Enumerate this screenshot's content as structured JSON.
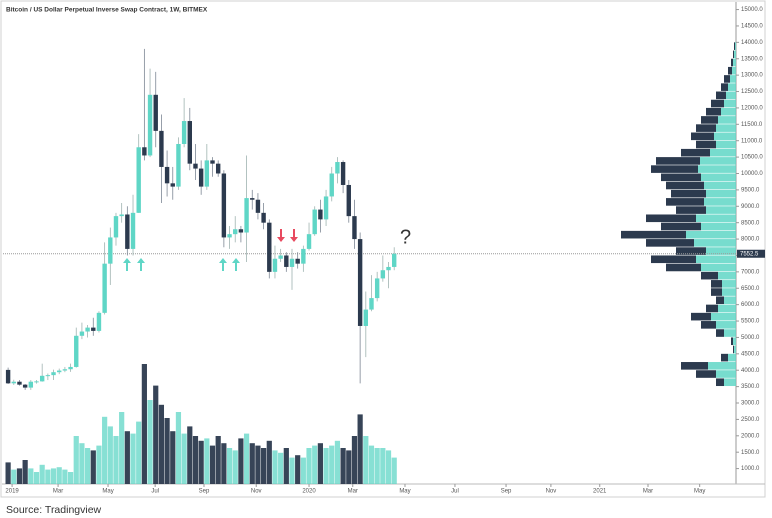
{
  "chart_data": {
    "type": "candlestick",
    "title": "Bitcoin / US Dollar Perpetual Inverse Swap Contract, 1W, BITMEX",
    "caption": "Source: Tradingview",
    "annotation": "?",
    "up_color": "#5fd6c6",
    "down_color": "#2c3a4e",
    "open": [
      4010,
      3600,
      3650,
      3560,
      3470,
      3650,
      3660,
      3830,
      3850,
      3940,
      3990,
      4030,
      4100,
      5050,
      5180,
      5300,
      5200,
      5750,
      7250,
      8050,
      8700,
      8750,
      7700,
      8800,
      10800,
      10550,
      12400,
      11300,
      10200,
      9700,
      9600,
      10900,
      11600,
      10300,
      10150,
      9600,
      10400,
      10300,
      10000,
      8050,
      8150,
      8300,
      8200,
      9250,
      9200,
      8800,
      8500,
      7000,
      7400,
      7500,
      7150,
      7400,
      7250,
      7700,
      8150,
      8900,
      8600,
      9300,
      10000,
      10350,
      9650,
      8700,
      8000,
      5350,
      5850,
      6200,
      6800,
      7050,
      7150
    ],
    "high": [
      4080,
      3710,
      3700,
      3580,
      3700,
      3700,
      4200,
      3900,
      4020,
      4050,
      4100,
      4200,
      5300,
      5450,
      5380,
      5600,
      5800,
      7900,
      8350,
      8800,
      9100,
      9000,
      9350,
      11200,
      13800,
      13200,
      13100,
      11800,
      10700,
      10200,
      11100,
      12300,
      12000,
      10900,
      10400,
      10900,
      10500,
      10400,
      10100,
      8400,
      8700,
      8400,
      10550,
      9500,
      9400,
      9100,
      8600,
      7800,
      7700,
      7600,
      7700,
      7600,
      7800,
      8500,
      9000,
      9200,
      9500,
      10200,
      10500,
      10400,
      9800,
      9200,
      8200,
      6400,
      6900,
      7000,
      7500,
      7300,
      7750
    ],
    "low": [
      3580,
      3550,
      3530,
      3400,
      3400,
      3590,
      3650,
      3700,
      3700,
      3880,
      3940,
      3950,
      4080,
      4950,
      5000,
      5050,
      5150,
      5700,
      6600,
      7800,
      8500,
      7500,
      7500,
      8800,
      10400,
      10500,
      10800,
      9100,
      9300,
      9200,
      9500,
      10800,
      10100,
      9800,
      9350,
      9500,
      9900,
      9900,
      7750,
      7700,
      7900,
      7900,
      7300,
      8900,
      8600,
      8300,
      6800,
      6800,
      7300,
      7000,
      6450,
      7100,
      7000,
      7650,
      8100,
      8200,
      8400,
      9150,
      9700,
      9400,
      8500,
      7700,
      3600,
      4400,
      5800,
      6100,
      6700,
      6500,
      7050
    ],
    "close": [
      3600,
      3650,
      3560,
      3470,
      3650,
      3660,
      3830,
      3850,
      3940,
      3990,
      4030,
      4100,
      5050,
      5180,
      5300,
      5200,
      5750,
      7250,
      8050,
      8700,
      8750,
      7700,
      8800,
      10800,
      10550,
      12400,
      11300,
      10200,
      9700,
      9600,
      10900,
      11600,
      10300,
      10150,
      9600,
      10400,
      10300,
      10000,
      8050,
      8150,
      8300,
      8200,
      9250,
      9200,
      8800,
      8500,
      7000,
      7400,
      7500,
      7150,
      7400,
      7250,
      7700,
      8150,
      8900,
      8600,
      9300,
      10000,
      10350,
      9650,
      8700,
      8000,
      5350,
      5850,
      6200,
      6800,
      7050,
      7150,
      7552.5
    ],
    "volume": [
      18,
      12,
      13,
      20,
      13,
      10,
      16,
      12,
      13,
      14,
      12,
      10,
      40,
      34,
      30,
      28,
      32,
      56,
      48,
      40,
      60,
      44,
      42,
      52,
      100,
      70,
      82,
      66,
      55,
      44,
      60,
      42,
      48,
      40,
      36,
      38,
      32,
      40,
      34,
      30,
      28,
      38,
      42,
      34,
      32,
      30,
      36,
      28,
      26,
      30,
      22,
      24,
      22,
      30,
      32,
      34,
      30,
      32,
      36,
      30,
      28,
      40,
      58,
      40,
      32,
      30,
      30,
      28,
      22
    ],
    "last_price": 7552.5,
    "last_price_label": "7552.5",
    "xlim": [
      -0.9,
      128.2
    ],
    "xticks": [
      {
        "value": 0.7,
        "label": "2019"
      },
      {
        "value": 8.8,
        "label": "Mar"
      },
      {
        "value": 17.6,
        "label": "May"
      },
      {
        "value": 25.9,
        "label": "Jul"
      },
      {
        "value": 34.5,
        "label": "Sep"
      },
      {
        "value": 43.7,
        "label": "Nov"
      },
      {
        "value": 53.0,
        "label": "2020"
      },
      {
        "value": 60.7,
        "label": "Mar"
      },
      {
        "value": 69.9,
        "label": "May"
      },
      {
        "value": 78.7,
        "label": "Jul"
      },
      {
        "value": 87.7,
        "label": "Sep"
      },
      {
        "value": 95.6,
        "label": "Nov"
      },
      {
        "value": 104.2,
        "label": "2021"
      },
      {
        "value": 112.7,
        "label": "Mar"
      },
      {
        "value": 121.8,
        "label": "May"
      }
    ],
    "ylim": [
      530,
      15200
    ],
    "yticks": [
      {
        "value": 1000,
        "label": "1000.0"
      },
      {
        "value": 1500,
        "label": "1500.0"
      },
      {
        "value": 2000,
        "label": "2000.0"
      },
      {
        "value": 2500,
        "label": "2500.0"
      },
      {
        "value": 3000,
        "label": "3000.0"
      },
      {
        "value": 3500,
        "label": "3500.0"
      },
      {
        "value": 4000,
        "label": "4000.0"
      },
      {
        "value": 4500,
        "label": "4500.0"
      },
      {
        "value": 5000,
        "label": "5000.0"
      },
      {
        "value": 5500,
        "label": "5500.0"
      },
      {
        "value": 6000,
        "label": "6000.0"
      },
      {
        "value": 6500,
        "label": "6500.0"
      },
      {
        "value": 7000,
        "label": "7000.0"
      },
      {
        "value": 7500,
        "label": "7500.0"
      },
      {
        "value": 8000,
        "label": "8000.0"
      },
      {
        "value": 8500,
        "label": "8500.0"
      },
      {
        "value": 9000,
        "label": "9000.0"
      },
      {
        "value": 9500,
        "label": "9500.0"
      },
      {
        "value": 10000,
        "label": "10000.0"
      },
      {
        "value": 10500,
        "label": "10500.0"
      },
      {
        "value": 11000,
        "label": "11000.0"
      },
      {
        "value": 11500,
        "label": "11500.0"
      },
      {
        "value": 12000,
        "label": "12000.0"
      },
      {
        "value": 12500,
        "label": "12500.0"
      },
      {
        "value": 13000,
        "label": "13000.0"
      },
      {
        "value": 13500,
        "label": "13500.0"
      },
      {
        "value": 14000,
        "label": "14000.0"
      },
      {
        "value": 14500,
        "label": "14500.0"
      },
      {
        "value": 15000,
        "label": "15000.0"
      }
    ],
    "volume_profile": {
      "bins": [
        3500,
        3750,
        4000,
        4250,
        4500,
        4750,
        5000,
        5250,
        5500,
        5750,
        6000,
        6250,
        6500,
        6750,
        7000,
        7250,
        7500,
        7750,
        8000,
        8250,
        8500,
        8750,
        9000,
        9250,
        9500,
        9750,
        10000,
        10250,
        10500,
        10750,
        11000,
        11250,
        11500,
        11750,
        12000,
        12250,
        12500,
        12750,
        13000,
        13250,
        13500,
        13750,
        14000
      ],
      "up": [
        12,
        20,
        28,
        8,
        2,
        3,
        12,
        20,
        25,
        18,
        12,
        14,
        14,
        18,
        35,
        40,
        30,
        42,
        50,
        35,
        40,
        30,
        32,
        30,
        32,
        35,
        38,
        36,
        26,
        20,
        22,
        20,
        18,
        15,
        12,
        10,
        8,
        6,
        4,
        3,
        2,
        1
      ],
      "down": [
        8,
        20,
        27,
        7,
        1,
        2,
        8,
        15,
        20,
        12,
        8,
        11,
        11,
        17,
        35,
        45,
        30,
        48,
        65,
        40,
        50,
        30,
        38,
        35,
        38,
        40,
        47,
        44,
        29,
        20,
        23,
        20,
        17,
        15,
        13,
        10,
        7,
        6,
        4,
        2,
        1,
        1
      ]
    }
  }
}
